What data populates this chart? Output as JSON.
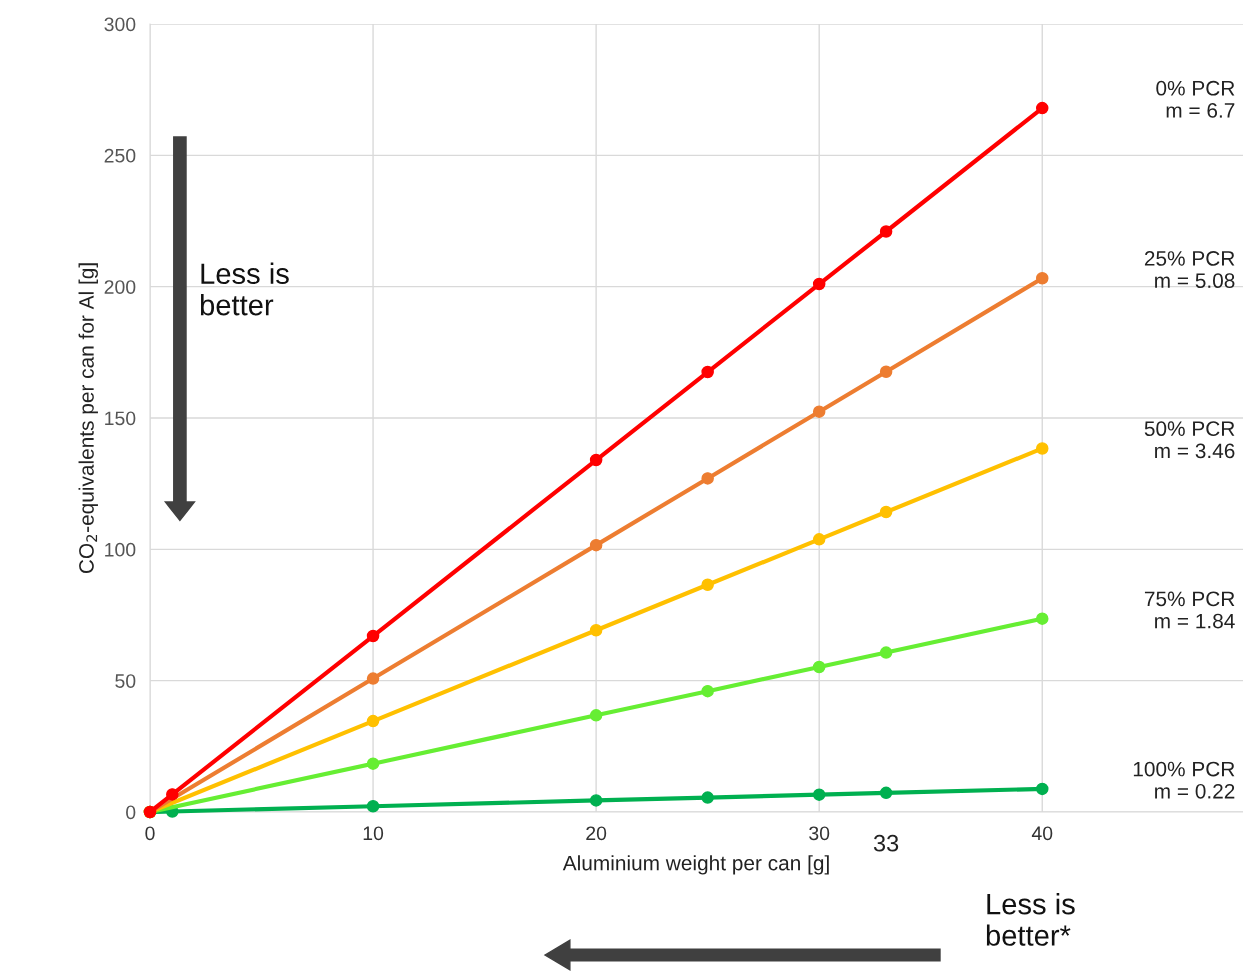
{
  "chart_data": {
    "type": "line",
    "xlabel": "Aluminium weight per can [g]",
    "ylabel": "CO$_{2}$-equivalents per can for Al [g]",
    "xlim": [
      0,
      49
    ],
    "ylim": [
      0,
      300
    ],
    "xticks": [
      0,
      10,
      20,
      30,
      40
    ],
    "yticks": [
      0,
      50,
      100,
      150,
      200,
      250,
      300
    ],
    "x": [
      0,
      1,
      10,
      20,
      25,
      30,
      33,
      40
    ],
    "grid": true,
    "legend": false,
    "marker": "circle",
    "line_style": "solid",
    "series": [
      {
        "name": "0% PCR",
        "color": "#ff0000",
        "values": [
          0,
          6.7,
          67,
          134,
          167.5,
          201,
          221,
          268
        ]
      },
      {
        "name": "25% PCR",
        "color": "#ed7d31",
        "x": [
          0,
          10,
          20,
          25,
          30,
          33,
          40
        ],
        "values": [
          0,
          50.8,
          101.6,
          127,
          152.4,
          167.6,
          203.2
        ]
      },
      {
        "name": "50% PCR",
        "color": "#ffc000",
        "x": [
          0,
          10,
          20,
          25,
          30,
          33,
          40
        ],
        "values": [
          0,
          34.6,
          69.2,
          86.5,
          103.8,
          114.2,
          138.4
        ]
      },
      {
        "name": "75% PCR",
        "color": "#66ee33",
        "x": [
          0,
          10,
          20,
          25,
          30,
          33,
          40
        ],
        "values": [
          0,
          18.4,
          36.8,
          46,
          55.2,
          60.7,
          73.6
        ]
      },
      {
        "name": "100% PCR",
        "color": "#00b050",
        "values": [
          0,
          0.2,
          2.2,
          4.4,
          5.5,
          6.6,
          7.3,
          8.8
        ]
      }
    ],
    "annotations": [
      "m = 6.7",
      "m = 5.08",
      "m = 3.46",
      "m = 1.84",
      "m = 0.22",
      "33",
      "Less is\nbetter",
      "Less is\nbetter*"
    ]
  }
}
